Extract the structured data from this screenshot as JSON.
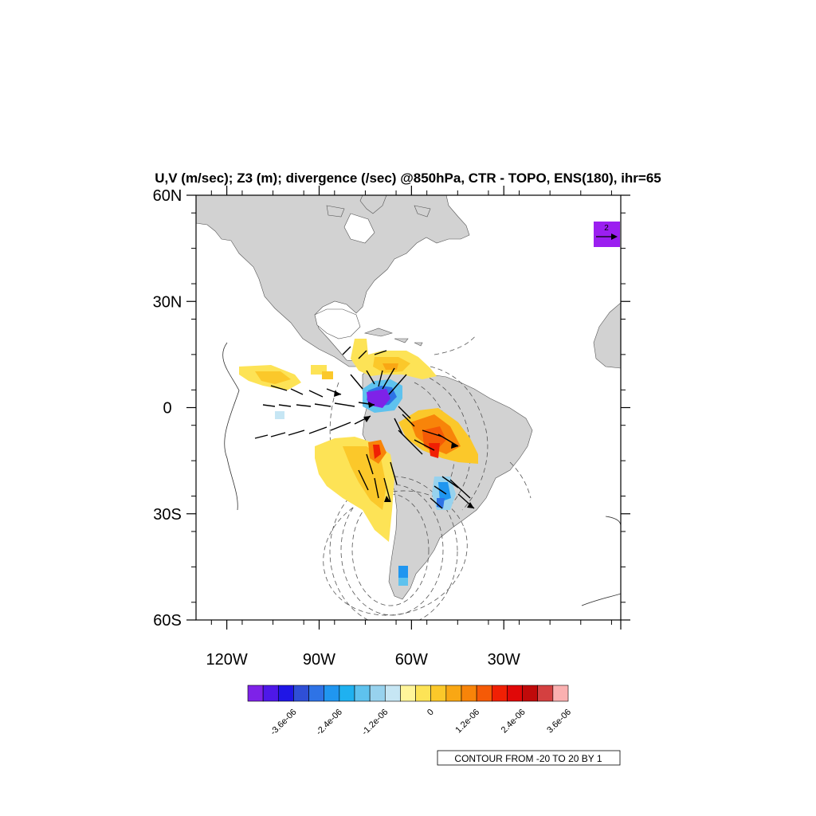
{
  "title": "U,V (m/sec); Z3 (m); divergence (/sec) @850hPa, CTR - TOPO, ENS(180), ihr=65",
  "map": {
    "lon_range": [
      -130,
      8
    ],
    "lat_range": [
      -60,
      60
    ],
    "land_color": "#d2d2d2",
    "lat_ticks": [
      {
        "value": 60,
        "label": "60N"
      },
      {
        "value": 30,
        "label": "30N"
      },
      {
        "value": 0,
        "label": "0"
      },
      {
        "value": -30,
        "label": "30S"
      },
      {
        "value": -60,
        "label": "60S"
      }
    ],
    "lon_ticks": [
      {
        "value": -120,
        "label": "120W"
      },
      {
        "value": -90,
        "label": "90W"
      },
      {
        "value": -60,
        "label": "60W"
      },
      {
        "value": -30,
        "label": "30W"
      }
    ]
  },
  "reference_vector": {
    "label": "2",
    "color": "#9b1ff0"
  },
  "colorbar": {
    "colors": [
      "#7e22e8",
      "#4e18e8",
      "#1f16e6",
      "#2f4fd6",
      "#2e73e6",
      "#2096f0",
      "#1fb1f0",
      "#5ec2ee",
      "#97d2ee",
      "#c6e6f4",
      "#fff59a",
      "#fde356",
      "#fbc82a",
      "#f9a714",
      "#f88409",
      "#f55a06",
      "#f02004",
      "#e00808",
      "#c00a0a",
      "#d44040",
      "#fab0b0"
    ],
    "labels": [
      "-3.6e-06",
      "-2.4e-06",
      "-1.2e-06",
      "0",
      "1.2e-06",
      "2.4e-06",
      "3.6e-06"
    ]
  },
  "contour_info": "CONTOUR FROM -20 TO 20 BY 1"
}
